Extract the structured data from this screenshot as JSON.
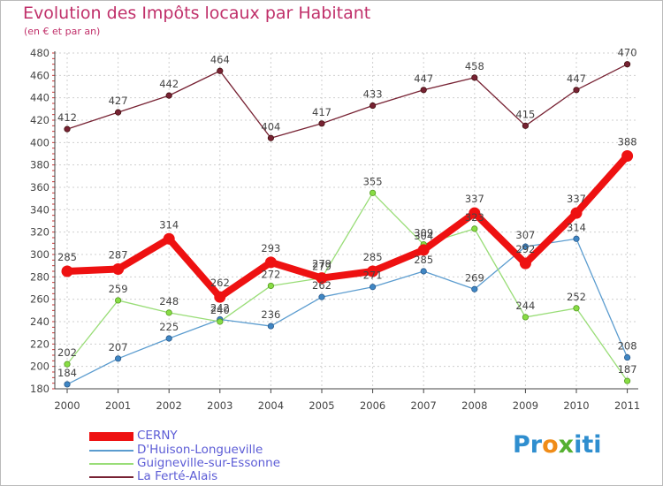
{
  "chart_data": {
    "type": "line",
    "title": "Evolution des Impôts locaux par Habitant",
    "subtitle": "(en € et par an)",
    "categories": [
      "2000",
      "2001",
      "2002",
      "2003",
      "2004",
      "2005",
      "2006",
      "2007",
      "2008",
      "2009",
      "2010",
      "2011"
    ],
    "ylim": [
      180,
      480
    ],
    "yticks": [
      180,
      200,
      220,
      240,
      260,
      280,
      300,
      320,
      340,
      360,
      380,
      400,
      420,
      440,
      460,
      480
    ],
    "grid": true,
    "legend_position": "bottom-left",
    "series": [
      {
        "name": "CERNY",
        "color": "#ee1111",
        "values": [
          285,
          287,
          314,
          262,
          293,
          279,
          285,
          304,
          337,
          292,
          337,
          388
        ]
      },
      {
        "name": "D'Huison-Longueville",
        "color": "#5b9ccf",
        "values": [
          184,
          207,
          225,
          242,
          236,
          262,
          271,
          285,
          269,
          307,
          314,
          208
        ]
      },
      {
        "name": "Guigneville-sur-Essonne",
        "color": "#99dd77",
        "values": [
          202,
          259,
          248,
          240,
          272,
          279,
          355,
          309,
          323,
          244,
          252,
          187
        ]
      },
      {
        "name": "La Ferté-Alais",
        "color": "#772233",
        "values": [
          412,
          427,
          442,
          464,
          404,
          417,
          433,
          447,
          458,
          415,
          447,
          470
        ]
      }
    ]
  },
  "brand": {
    "p1": "Pr",
    "p2": "o",
    "p3": "x",
    "p4": "iti"
  }
}
